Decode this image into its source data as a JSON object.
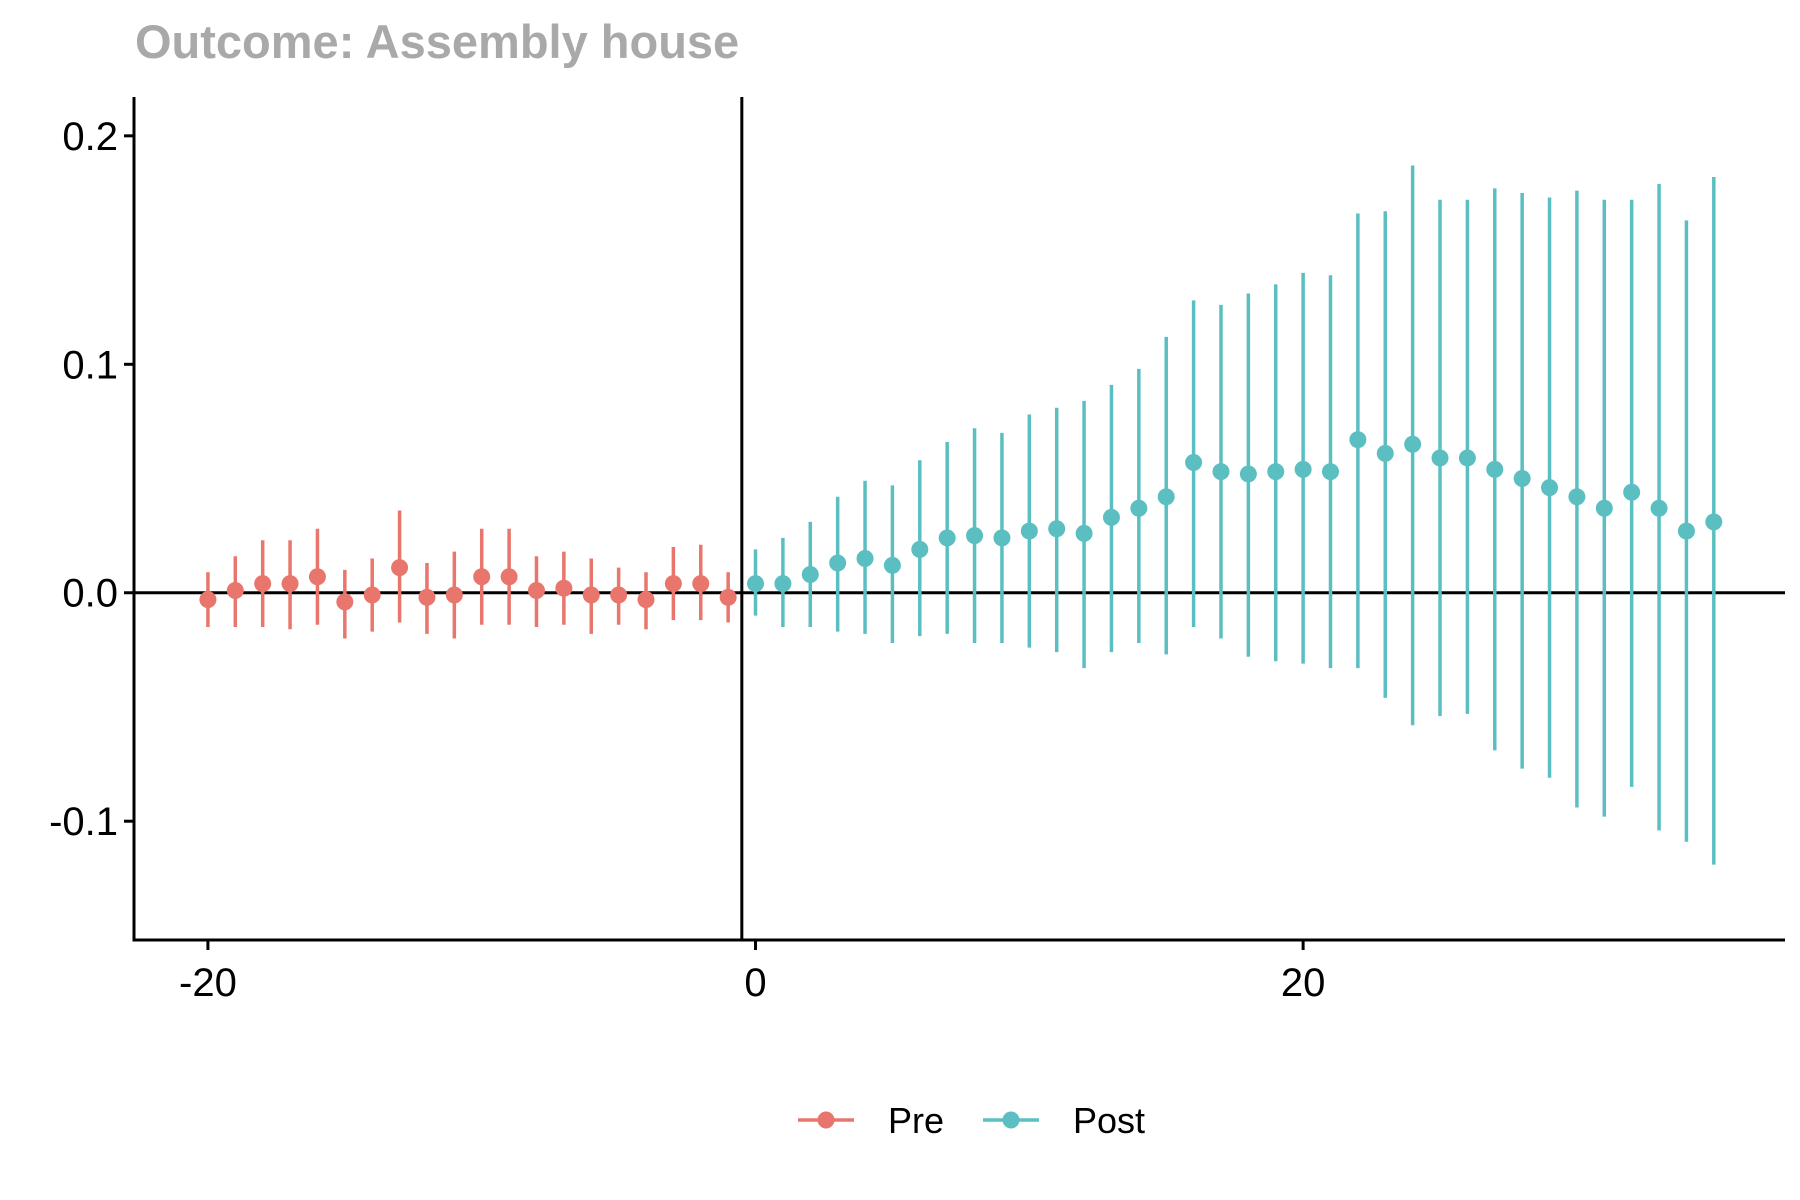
{
  "chart_data": {
    "type": "scatter",
    "title": "Outcome: Assembly house",
    "xlabel": "",
    "ylabel": "",
    "xlim": [
      -22.7,
      37.6
    ],
    "ylim": [
      -0.152,
      0.217
    ],
    "x_ticks": [
      -20,
      0,
      20
    ],
    "x_tick_labels": [
      "-20",
      "0",
      "20"
    ],
    "y_ticks": [
      -0.1,
      0.0,
      0.1,
      0.2
    ],
    "y_tick_labels": [
      "-0.1",
      "0.0",
      "0.1",
      "0.2"
    ],
    "reference_lines": {
      "x": -0.5,
      "y": 0.0
    },
    "grid": false,
    "legend_position": "bottom",
    "error_bars": true,
    "series": [
      {
        "name": "Pre",
        "color": "#E8766D",
        "x": [
          -20,
          -19,
          -18,
          -17,
          -16,
          -15,
          -14,
          -13,
          -12,
          -11,
          -10,
          -9,
          -8,
          -7,
          -6,
          -5,
          -4,
          -3,
          -2,
          -1
        ],
        "y": [
          -0.003,
          0.001,
          0.004,
          0.004,
          0.007,
          -0.004,
          -0.001,
          0.011,
          -0.002,
          -0.001,
          0.007,
          0.007,
          0.001,
          0.002,
          -0.001,
          -0.001,
          -0.003,
          0.004,
          0.004,
          -0.002
        ],
        "lower": [
          -0.015,
          -0.015,
          -0.015,
          -0.016,
          -0.014,
          -0.02,
          -0.017,
          -0.013,
          -0.018,
          -0.02,
          -0.014,
          -0.014,
          -0.015,
          -0.014,
          -0.018,
          -0.014,
          -0.016,
          -0.012,
          -0.012,
          -0.013
        ],
        "upper": [
          0.009,
          0.016,
          0.023,
          0.023,
          0.028,
          0.01,
          0.015,
          0.036,
          0.013,
          0.018,
          0.028,
          0.028,
          0.016,
          0.018,
          0.015,
          0.011,
          0.009,
          0.02,
          0.021,
          0.009
        ]
      },
      {
        "name": "Post",
        "color": "#5BBFC2",
        "x": [
          0,
          1,
          2,
          3,
          4,
          5,
          6,
          7,
          8,
          9,
          10,
          11,
          12,
          13,
          14,
          15,
          16,
          17,
          18,
          19,
          20,
          21,
          22,
          23,
          24,
          25,
          26,
          27,
          28,
          29,
          30,
          31,
          32,
          33,
          34,
          35
        ],
        "y": [
          0.004,
          0.004,
          0.008,
          0.013,
          0.015,
          0.012,
          0.019,
          0.024,
          0.025,
          0.024,
          0.027,
          0.028,
          0.026,
          0.033,
          0.037,
          0.042,
          0.057,
          0.053,
          0.052,
          0.053,
          0.054,
          0.053,
          0.067,
          0.061,
          0.065,
          0.059,
          0.059,
          0.054,
          0.05,
          0.046,
          0.042,
          0.037,
          0.044,
          0.037,
          0.027,
          0.031
        ],
        "lower": [
          -0.01,
          -0.015,
          -0.015,
          -0.017,
          -0.018,
          -0.022,
          -0.019,
          -0.018,
          -0.022,
          -0.022,
          -0.024,
          -0.026,
          -0.033,
          -0.026,
          -0.022,
          -0.027,
          -0.015,
          -0.02,
          -0.028,
          -0.03,
          -0.031,
          -0.033,
          -0.033,
          -0.046,
          -0.058,
          -0.054,
          -0.053,
          -0.069,
          -0.077,
          -0.081,
          -0.094,
          -0.098,
          -0.085,
          -0.104,
          -0.109,
          -0.119
        ],
        "upper": [
          0.019,
          0.024,
          0.031,
          0.042,
          0.049,
          0.047,
          0.058,
          0.066,
          0.072,
          0.07,
          0.078,
          0.081,
          0.084,
          0.091,
          0.098,
          0.112,
          0.128,
          0.126,
          0.131,
          0.135,
          0.14,
          0.139,
          0.166,
          0.167,
          0.187,
          0.172,
          0.172,
          0.177,
          0.175,
          0.173,
          0.176,
          0.172,
          0.172,
          0.179,
          0.163,
          0.182
        ]
      }
    ]
  }
}
